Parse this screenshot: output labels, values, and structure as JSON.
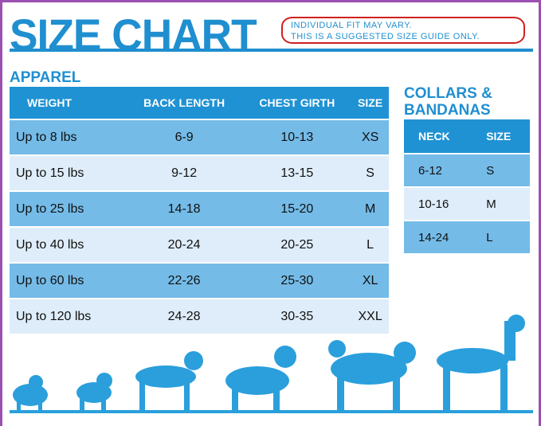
{
  "title": "SIZE CHART",
  "note": {
    "line1": "INDIVIDUAL FIT MAY VARY.",
    "line2": "THIS IS A SUGGESTED SIZE GUIDE ONLY."
  },
  "apparel": {
    "heading": "APPAREL",
    "columns": [
      "WEIGHT",
      "BACK LENGTH",
      "CHEST GIRTH",
      "SIZE"
    ],
    "rows": [
      [
        "Up to 8 lbs",
        "6-9",
        "10-13",
        "XS"
      ],
      [
        "Up to 15 lbs",
        "9-12",
        "13-15",
        "S"
      ],
      [
        "Up to 25 lbs",
        "14-18",
        "15-20",
        "M"
      ],
      [
        "Up to 40 lbs",
        "20-24",
        "20-25",
        "L"
      ],
      [
        "Up to 60 lbs",
        "22-26",
        "25-30",
        "XL"
      ],
      [
        "Up to 120 lbs",
        "24-28",
        "30-35",
        "XXL"
      ]
    ]
  },
  "collars": {
    "heading_line1": "COLLARS &",
    "heading_line2": "BANDANAS",
    "columns": [
      "NECK",
      "SIZE"
    ],
    "rows": [
      [
        "6-12",
        "S"
      ],
      [
        "10-16",
        "M"
      ],
      [
        "14-24",
        "L"
      ]
    ]
  },
  "colors": {
    "accent": "#1f8fd0",
    "row_dark": "#74bbe8",
    "row_light": "#deedf9",
    "border": "#9b4fb0",
    "note_border": "#d02020"
  }
}
